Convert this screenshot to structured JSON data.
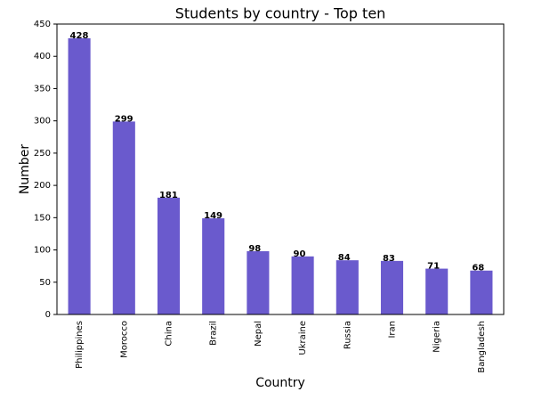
{
  "chart_data": {
    "type": "bar",
    "title": "Students by country - Top ten",
    "x_label": "Country",
    "y_label": "Number",
    "categories": [
      "Philippines",
      "Morocco",
      "China",
      "Brazil",
      "Nepal",
      "Ukraine",
      "Russia",
      "Iran",
      "Nigeria",
      "Bangladesh"
    ],
    "values": [
      428,
      299,
      181,
      149,
      98,
      90,
      84,
      83,
      71,
      68
    ],
    "color": "#6a5acd",
    "ylim": [
      0,
      450
    ],
    "yticks": [
      0,
      50,
      100,
      150,
      200,
      250,
      300,
      350,
      400,
      450
    ],
    "grid": false
  }
}
